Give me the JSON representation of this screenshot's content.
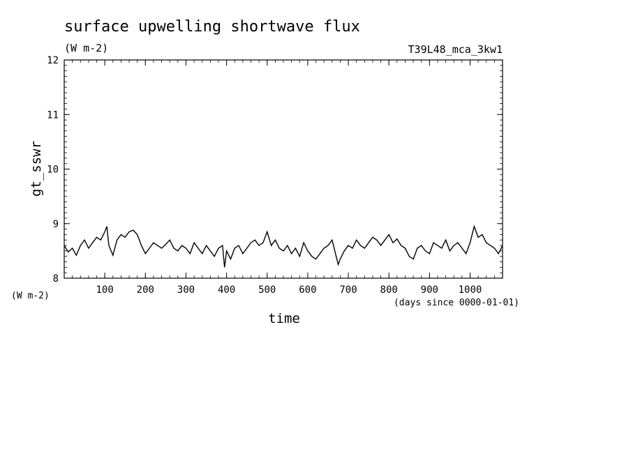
{
  "chart_data": {
    "type": "line",
    "title": "surface upwelling shortwave flux",
    "units": "(W m-2)",
    "run_label": "T39L48_mca_3kw1",
    "ylabel": "gt_sswr",
    "y_units": "(W m-2)",
    "xlabel": "time",
    "x_units": "(days since 0000-01-01)",
    "xlim": [
      0,
      1080
    ],
    "ylim": [
      8,
      12
    ],
    "x_ticks": [
      100,
      200,
      300,
      400,
      500,
      600,
      700,
      800,
      900,
      1000
    ],
    "y_ticks": [
      8,
      9,
      10,
      11,
      12
    ],
    "grid": false,
    "series": [
      {
        "color": "#000000",
        "x": [
          0,
          10,
          20,
          30,
          40,
          50,
          60,
          70,
          80,
          90,
          100,
          105,
          110,
          120,
          130,
          140,
          150,
          160,
          170,
          180,
          190,
          200,
          210,
          220,
          230,
          240,
          250,
          260,
          270,
          280,
          290,
          300,
          310,
          320,
          330,
          340,
          350,
          360,
          370,
          380,
          390,
          395,
          400,
          410,
          420,
          430,
          440,
          450,
          460,
          470,
          480,
          490,
          500,
          510,
          520,
          530,
          540,
          550,
          560,
          570,
          580,
          590,
          600,
          610,
          620,
          630,
          640,
          650,
          660,
          670,
          675,
          680,
          690,
          700,
          710,
          720,
          730,
          740,
          750,
          760,
          770,
          780,
          790,
          800,
          810,
          820,
          830,
          840,
          850,
          860,
          870,
          880,
          890,
          900,
          910,
          920,
          930,
          940,
          950,
          960,
          970,
          980,
          990,
          1000,
          1010,
          1020,
          1030,
          1040,
          1050,
          1060,
          1070,
          1080
        ],
        "values": [
          8.6,
          8.48,
          8.55,
          8.42,
          8.6,
          8.7,
          8.55,
          8.65,
          8.75,
          8.7,
          8.85,
          8.95,
          8.6,
          8.42,
          8.7,
          8.8,
          8.75,
          8.85,
          8.88,
          8.8,
          8.6,
          8.45,
          8.55,
          8.65,
          8.6,
          8.55,
          8.62,
          8.7,
          8.55,
          8.5,
          8.6,
          8.55,
          8.45,
          8.65,
          8.55,
          8.45,
          8.6,
          8.5,
          8.4,
          8.55,
          8.6,
          8.2,
          8.5,
          8.35,
          8.55,
          8.6,
          8.45,
          8.55,
          8.65,
          8.7,
          8.6,
          8.65,
          8.85,
          8.6,
          8.7,
          8.55,
          8.5,
          8.6,
          8.45,
          8.55,
          8.4,
          8.65,
          8.5,
          8.4,
          8.35,
          8.45,
          8.55,
          8.6,
          8.7,
          8.4,
          8.25,
          8.35,
          8.5,
          8.6,
          8.55,
          8.7,
          8.6,
          8.55,
          8.65,
          8.75,
          8.7,
          8.6,
          8.7,
          8.8,
          8.65,
          8.72,
          8.6,
          8.55,
          8.4,
          8.35,
          8.55,
          8.6,
          8.5,
          8.45,
          8.65,
          8.6,
          8.55,
          8.7,
          8.5,
          8.6,
          8.65,
          8.55,
          8.45,
          8.65,
          8.95,
          8.75,
          8.8,
          8.65,
          8.6,
          8.55,
          8.45,
          8.6
        ]
      }
    ]
  }
}
